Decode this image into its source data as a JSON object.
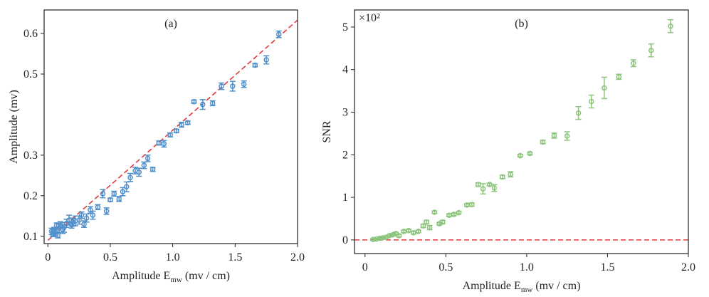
{
  "chart_data": [
    {
      "type": "scatter",
      "title": "(a)",
      "xlabel": {
        "main": "Amplitude E",
        "sub": "mw",
        "rest": " (mv / cm)"
      },
      "ylabel": "Amplitude (mv)",
      "color": "#4f8fcb",
      "x": [
        0.03,
        0.04,
        0.05,
        0.06,
        0.07,
        0.08,
        0.09,
        0.1,
        0.12,
        0.13,
        0.15,
        0.17,
        0.19,
        0.2,
        0.22,
        0.25,
        0.27,
        0.29,
        0.31,
        0.34,
        0.36,
        0.4,
        0.44,
        0.47,
        0.5,
        0.53,
        0.57,
        0.6,
        0.63,
        0.66,
        0.7,
        0.73,
        0.77,
        0.8,
        0.84,
        0.89,
        0.93,
        0.98,
        1.03,
        1.07,
        1.12,
        1.17,
        1.24,
        1.32,
        1.39,
        1.48,
        1.57,
        1.66,
        1.75,
        1.85
      ],
      "values": [
        0.112,
        0.105,
        0.116,
        0.11,
        0.127,
        0.102,
        0.12,
        0.128,
        0.117,
        0.122,
        0.132,
        0.14,
        0.128,
        0.135,
        0.138,
        0.14,
        0.152,
        0.13,
        0.145,
        0.165,
        0.152,
        0.172,
        0.205,
        0.162,
        0.19,
        0.205,
        0.192,
        0.21,
        0.222,
        0.245,
        0.262,
        0.258,
        0.275,
        0.292,
        0.265,
        0.33,
        0.328,
        0.35,
        0.36,
        0.375,
        0.38,
        0.432,
        0.425,
        0.428,
        0.47,
        0.47,
        0.475,
        0.522,
        0.535,
        0.598
      ],
      "errors": [
        0.008,
        0.006,
        0.006,
        0.008,
        0.006,
        0.006,
        0.01,
        0.008,
        0.01,
        0.012,
        0.01,
        0.012,
        0.008,
        0.01,
        0.012,
        0.01,
        0.008,
        0.008,
        0.01,
        0.008,
        0.01,
        0.006,
        0.01,
        0.008,
        0.004,
        0.006,
        0.006,
        0.01,
        0.012,
        0.01,
        0.008,
        0.01,
        0.008,
        0.008,
        0.005,
        0.005,
        0.008,
        0.005,
        0.004,
        0.006,
        0.004,
        0.004,
        0.012,
        0.006,
        0.008,
        0.012,
        0.008,
        0.004,
        0.01,
        0.008
      ],
      "fit_line": {
        "x": [
          0,
          2.0
        ],
        "y": [
          0.09,
          0.633
        ],
        "color": "#e03a3a"
      },
      "xlim": [
        -0.03,
        2.0
      ],
      "ylim": [
        0.082,
        0.658
      ],
      "xticks": [
        0,
        0.5,
        {
          "value": 1,
          "label": "1.0"
        },
        1.5,
        {
          "value": 2,
          "label": "2.0"
        }
      ],
      "yticks": [
        0.1,
        0.2,
        0.3,
        0.5,
        0.6
      ]
    },
    {
      "type": "scatter",
      "title": "(b)",
      "xlabel": {
        "main": "Amplitude E",
        "sub": "mw",
        "rest": " (mv / cm)"
      },
      "ylabel": "SNR",
      "y_multiplier": "×10²",
      "color": "#8cc47c",
      "x": [
        0.05,
        0.07,
        0.09,
        0.11,
        0.13,
        0.15,
        0.17,
        0.19,
        0.21,
        0.24,
        0.27,
        0.3,
        0.33,
        0.36,
        0.38,
        0.4,
        0.43,
        0.46,
        0.48,
        0.52,
        0.55,
        0.58,
        0.63,
        0.66,
        0.7,
        0.73,
        0.77,
        0.8,
        0.85,
        0.9,
        0.96,
        1.02,
        1.1,
        1.17,
        1.25,
        1.32,
        1.4,
        1.48,
        1.57,
        1.66,
        1.77,
        1.89
      ],
      "values": [
        0.01,
        0.02,
        0.04,
        0.05,
        0.06,
        0.1,
        0.12,
        0.15,
        0.1,
        0.2,
        0.22,
        0.17,
        0.2,
        0.33,
        0.42,
        0.29,
        0.65,
        0.38,
        0.42,
        0.58,
        0.6,
        0.64,
        0.82,
        0.83,
        1.3,
        1.2,
        1.3,
        1.22,
        1.48,
        1.54,
        1.98,
        2.03,
        2.3,
        2.45,
        2.44,
        2.98,
        3.25,
        3.57,
        3.83,
        4.15,
        4.45,
        5.02
      ],
      "errors": [
        0.02,
        0.02,
        0.02,
        0.02,
        0.02,
        0.02,
        0.03,
        0.03,
        0.03,
        0.03,
        0.03,
        0.03,
        0.03,
        0.04,
        0.04,
        0.05,
        0.03,
        0.03,
        0.04,
        0.03,
        0.03,
        0.03,
        0.03,
        0.04,
        0.04,
        0.12,
        0.03,
        0.08,
        0.04,
        0.06,
        0.03,
        0.03,
        0.04,
        0.06,
        0.1,
        0.15,
        0.15,
        0.25,
        0.06,
        0.08,
        0.15,
        0.15
      ],
      "reference_line": {
        "y": 0,
        "color": "#e03a3a"
      },
      "xlim": [
        -0.065,
        2.0
      ],
      "ylim": [
        -0.32,
        5.4
      ],
      "xticks": [
        0,
        0.5,
        {
          "value": 1,
          "label": "1.0"
        },
        1.5,
        {
          "value": 2,
          "label": "2.0"
        }
      ],
      "yticks": [
        0,
        1,
        2,
        3,
        4,
        5
      ]
    }
  ]
}
